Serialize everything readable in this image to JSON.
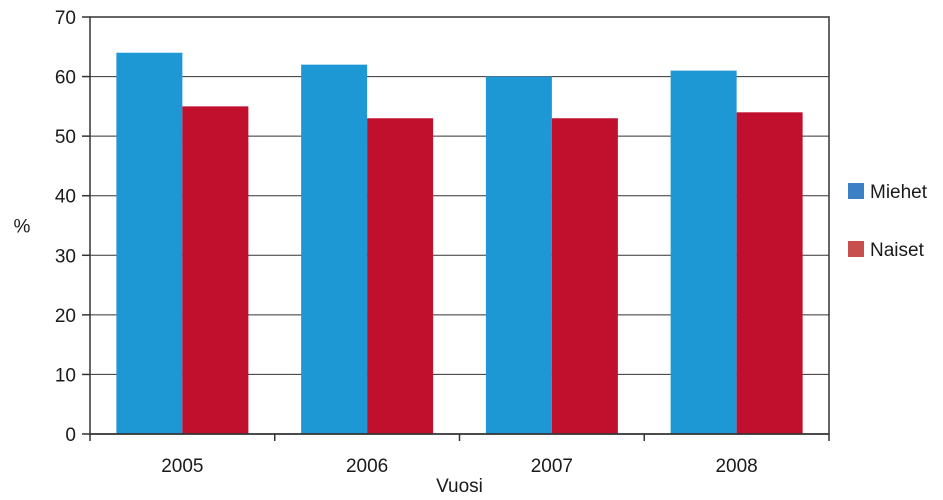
{
  "chart_data": {
    "type": "bar",
    "title": "",
    "xlabel": "Vuosi",
    "ylabel": "%",
    "categories": [
      "2005",
      "2006",
      "2007",
      "2008"
    ],
    "series": [
      {
        "name": "Miehet",
        "values": [
          64,
          62,
          60,
          61
        ],
        "color": "#1e98d5",
        "legend_color": "#3b7fc4"
      },
      {
        "name": "Naiset",
        "values": [
          55,
          53,
          53,
          54
        ],
        "color": "#c0102d",
        "legend_color": "#c8504c"
      }
    ],
    "ylim": [
      0,
      70
    ],
    "yticks": [
      0,
      10,
      20,
      30,
      40,
      50,
      60,
      70
    ],
    "grid": true,
    "legend_position": "right"
  }
}
